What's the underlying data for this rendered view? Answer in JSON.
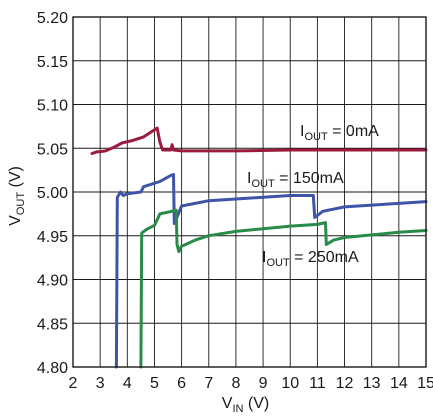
{
  "chart_data": {
    "type": "line",
    "xlabel": {
      "main": "V",
      "sub": "IN",
      "unit": " (V)"
    },
    "ylabel": {
      "main": "V",
      "sub": "OUT",
      "unit": " (V)"
    },
    "xlim": [
      2,
      15
    ],
    "ylim": [
      4.8,
      5.2
    ],
    "x_ticks": [
      2,
      3,
      4,
      5,
      6,
      7,
      8,
      9,
      10,
      11,
      12,
      13,
      14,
      15
    ],
    "x_tick_labels": [
      "2",
      "3",
      "4",
      "5",
      "6",
      "7",
      "8",
      "9",
      "10",
      "11",
      "12",
      "13",
      "14",
      "15"
    ],
    "y_ticks": [
      4.8,
      4.85,
      4.9,
      4.95,
      5.0,
      5.05,
      5.1,
      5.15,
      5.2
    ],
    "y_tick_labels": [
      "4.80",
      "4.85",
      "4.90",
      "4.95",
      "5.00",
      "5.05",
      "5.10",
      "5.15",
      "5.20"
    ],
    "grid": true,
    "series": [
      {
        "name": "IOUT = 0mA",
        "label": {
          "main": "I",
          "sub": "OUT",
          "rest": " = 0mA"
        },
        "color": "#9b1b3f",
        "x": [
          2.7,
          2.9,
          3.0,
          3.2,
          3.5,
          3.8,
          4.2,
          4.6,
          4.9,
          5.1,
          5.2,
          5.3,
          5.6,
          5.65,
          5.7,
          6.0,
          8.0,
          10.0,
          12.0,
          15.0
        ],
        "y": [
          5.044,
          5.046,
          5.046,
          5.047,
          5.051,
          5.056,
          5.059,
          5.063,
          5.069,
          5.073,
          5.057,
          5.048,
          5.048,
          5.054,
          5.048,
          5.047,
          5.047,
          5.048,
          5.048,
          5.048
        ]
      },
      {
        "name": "IOUT = 150mA",
        "label": {
          "main": "I",
          "sub": "OUT",
          "rest": " = 150mA"
        },
        "color": "#3d54a7",
        "x": [
          3.6,
          3.63,
          3.75,
          3.85,
          4.0,
          4.5,
          4.6,
          5.2,
          5.6,
          5.7,
          5.73,
          6.0,
          7.0,
          8.0,
          9.0,
          10.0,
          10.6,
          10.85,
          10.9,
          11.2,
          12.0,
          13.0,
          14.0,
          15.0
        ],
        "y": [
          4.8,
          4.994,
          5.0,
          4.996,
          4.998,
          5.0,
          5.006,
          5.012,
          5.019,
          5.02,
          4.964,
          4.984,
          4.99,
          4.992,
          4.994,
          4.996,
          4.996,
          4.996,
          4.971,
          4.978,
          4.983,
          4.985,
          4.987,
          4.989
        ]
      },
      {
        "name": "IOUT = 250mA",
        "label": {
          "main": "I",
          "sub": "OUT",
          "rest": " = 250mA"
        },
        "color": "#2a8a4a",
        "x": [
          4.5,
          4.53,
          4.7,
          5.0,
          5.2,
          5.8,
          5.83,
          5.9,
          6.0,
          6.5,
          7.0,
          8.0,
          9.0,
          10.0,
          11.0,
          11.3,
          11.33,
          11.6,
          12.0,
          13.0,
          14.0,
          15.0
        ],
        "y": [
          4.8,
          4.953,
          4.957,
          4.962,
          4.975,
          4.979,
          4.94,
          4.932,
          4.938,
          4.945,
          4.95,
          4.955,
          4.958,
          4.961,
          4.963,
          4.965,
          4.94,
          4.945,
          4.948,
          4.951,
          4.954,
          4.956
        ]
      }
    ]
  }
}
